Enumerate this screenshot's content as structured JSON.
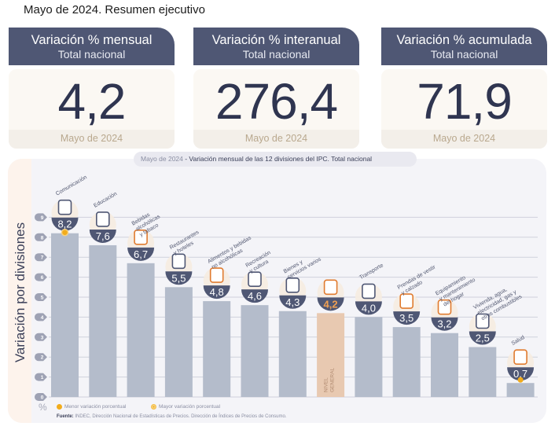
{
  "page_title": "Mayo de 2024. Resumen ejecutivo",
  "kpis": [
    {
      "title": "Variación % mensual",
      "subtitle": "Total nacional",
      "value": "4,2",
      "date": "Mayo de 2024"
    },
    {
      "title": "Variación % interanual",
      "subtitle": "Total nacional",
      "value": "276,4",
      "date": "Mayo de 2024"
    },
    {
      "title": "Variación % acumulada",
      "subtitle": "Total nacional",
      "value": "71,9",
      "date": "Mayo de 2024"
    }
  ],
  "chart_tag": {
    "date": "Mayo de 2024",
    "text": " - Variación mensual de las 12 divisiones del IPC. Total nacional"
  },
  "colors": {
    "bar": "#b4bccb",
    "bar_general": "#e8c9b1",
    "badge": "#4f5774",
    "accent_orange": "#e07b2f",
    "marker": "#f2ac1b",
    "grid": "#cfd1dc"
  },
  "legend": {
    "min_label": "Menor variación porcentual",
    "max_label": "Mayor variación porcentual"
  },
  "source": {
    "label": "Fuente:",
    "text": " INDEC, Dirección Nacional de Estadísticas de Precios. Dirección de Índices de Precios de Consumo."
  },
  "chart_data": {
    "type": "bar",
    "title": "Mayo de 2024 - Variación mensual de las 12 divisiones del IPC. Total nacional",
    "xlabel": "",
    "ylabel": "Variación por divisiones",
    "yunit": "%",
    "ylim": [
      0,
      9
    ],
    "yticks": [
      "0",
      "1",
      "2",
      "3",
      "4",
      "5",
      "6",
      "7",
      "8",
      "9"
    ],
    "grid": true,
    "categories": [
      {
        "label": [
          "Comunicación"
        ],
        "icon": "phone-icon"
      },
      {
        "label": [
          "Educación"
        ],
        "icon": "notebook-icon"
      },
      {
        "label": [
          "Bebidas",
          "alcohólicas",
          "y tabaco"
        ],
        "icon": "bottle-icon"
      },
      {
        "label": [
          "Restaurantes",
          "y hoteles"
        ],
        "icon": "plate-cutlery-icon"
      },
      {
        "label": [
          "Alimentos y bebidas",
          "no alcohólicas"
        ],
        "icon": "food-icon"
      },
      {
        "label": [
          "Recreación",
          "y cultura"
        ],
        "icon": "umbrella-icon"
      },
      {
        "label": [
          "Bienes y",
          "servicios varios"
        ],
        "icon": "scissors-comb-icon"
      },
      {
        "label": [
          "NIVEL",
          "GENERAL"
        ],
        "icon": "shopping-basket-icon",
        "general": true
      },
      {
        "label": [
          "Transporte"
        ],
        "icon": "sube-car-icon"
      },
      {
        "label": [
          "Prendas de vestir",
          "y calzado"
        ],
        "icon": "shirt-shoe-icon"
      },
      {
        "label": [
          "Equipamiento",
          "y mantenimiento",
          "del hogar"
        ],
        "icon": "washing-machine-icon"
      },
      {
        "label": [
          "Vivienda, agua,",
          "electricidad, gas y",
          "otros combustibles"
        ],
        "icon": "lightbulb-icon"
      },
      {
        "label": [
          "Salud"
        ],
        "icon": "health-cross-icon"
      }
    ],
    "values": [
      8.2,
      7.6,
      6.7,
      5.5,
      4.8,
      4.6,
      4.3,
      4.2,
      4.0,
      3.5,
      3.2,
      2.5,
      0.7
    ],
    "value_labels": [
      "8,2",
      "7,6",
      "6,7",
      "5,5",
      "4,8",
      "4,6",
      "4,3",
      "4,2",
      "4,0",
      "3,5",
      "3,2",
      "2,5",
      "0,7"
    ],
    "max_marker_index": 0,
    "min_marker_index": 12,
    "legend_placement": "bottom-left"
  }
}
